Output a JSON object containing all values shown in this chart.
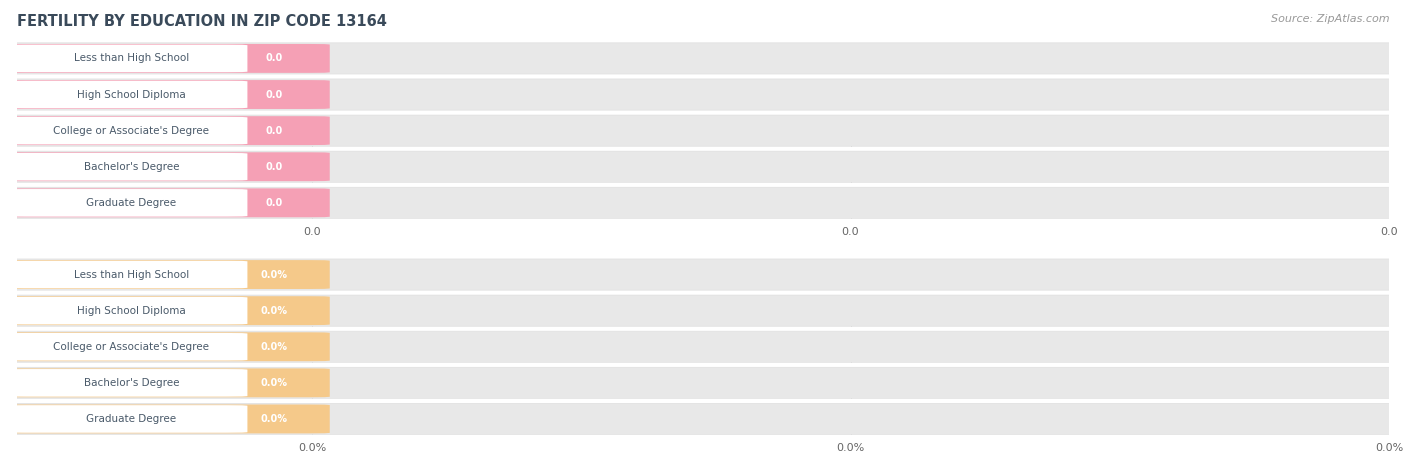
{
  "title": "FERTILITY BY EDUCATION IN ZIP CODE 13164",
  "source": "Source: ZipAtlas.com",
  "categories": [
    "Less than High School",
    "High School Diploma",
    "College or Associate's Degree",
    "Bachelor's Degree",
    "Graduate Degree"
  ],
  "top_values": [
    0.0,
    0.0,
    0.0,
    0.0,
    0.0
  ],
  "bottom_values": [
    0.0,
    0.0,
    0.0,
    0.0,
    0.0
  ],
  "top_bar_color": "#f5a0b5",
  "bottom_bar_color": "#f5c98a",
  "top_xlabel_vals": [
    "0.0",
    "0.0",
    "0.0"
  ],
  "bottom_xlabel_vals": [
    "0.0%",
    "0.0%",
    "0.0%"
  ],
  "title_color": "#3a4a5a",
  "source_color": "#999999",
  "background_color": "#ffffff",
  "label_bg_color": "#ffffff",
  "label_text_color": "#4a5a6a",
  "row_bg_color": "#e8e8e8",
  "row_border_color": "#dddddd",
  "grid_color": "#cccccc",
  "figwidth": 14.06,
  "figheight": 4.75
}
